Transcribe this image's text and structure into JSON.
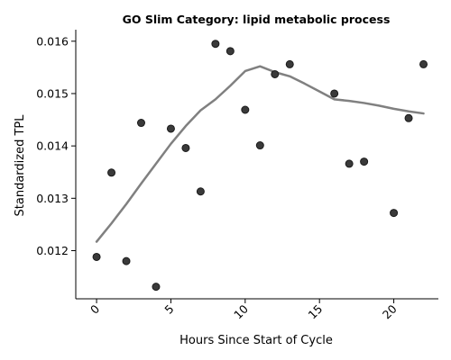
{
  "chart_data": {
    "type": "scatter",
    "title": "GO Slim Category: lipid metabolic process",
    "xlabel": "Hours Since Start of Cycle",
    "ylabel": "Standardized TPL",
    "xlim": [
      -1.4,
      23.0
    ],
    "ylim": [
      0.01108,
      0.01622
    ],
    "xticks": [
      0,
      5,
      10,
      15,
      20
    ],
    "xtick_labels": [
      "0",
      "5",
      "10",
      "15",
      "20"
    ],
    "yticks": [
      0.012,
      0.013,
      0.014,
      0.015,
      0.016
    ],
    "ytick_labels": [
      "0.012",
      "0.013",
      "0.014",
      "0.015",
      "0.016"
    ],
    "grid": false,
    "series": [
      {
        "kind": "scatter",
        "color": "#3a3a3a",
        "points": [
          {
            "x": 0,
            "y": 0.01188
          },
          {
            "x": 1,
            "y": 0.01349
          },
          {
            "x": 2,
            "y": 0.0118
          },
          {
            "x": 3,
            "y": 0.01444
          },
          {
            "x": 4,
            "y": 0.01131
          },
          {
            "x": 5,
            "y": 0.01433
          },
          {
            "x": 6,
            "y": 0.01396
          },
          {
            "x": 7,
            "y": 0.01313
          },
          {
            "x": 8,
            "y": 0.01595
          },
          {
            "x": 9,
            "y": 0.01581
          },
          {
            "x": 10,
            "y": 0.01469
          },
          {
            "x": 11,
            "y": 0.01401
          },
          {
            "x": 12,
            "y": 0.01537
          },
          {
            "x": 13,
            "y": 0.01556
          },
          {
            "x": 16,
            "y": 0.015
          },
          {
            "x": 17,
            "y": 0.01366
          },
          {
            "x": 18,
            "y": 0.0137
          },
          {
            "x": 20,
            "y": 0.01272
          },
          {
            "x": 21,
            "y": 0.01453
          },
          {
            "x": 22,
            "y": 0.01556
          }
        ]
      },
      {
        "kind": "line",
        "color": "#808080",
        "points": [
          {
            "x": 0,
            "y": 0.01217
          },
          {
            "x": 1,
            "y": 0.01252
          },
          {
            "x": 2,
            "y": 0.01289
          },
          {
            "x": 3,
            "y": 0.01328
          },
          {
            "x": 4,
            "y": 0.01366
          },
          {
            "x": 5,
            "y": 0.01404
          },
          {
            "x": 6,
            "y": 0.01438
          },
          {
            "x": 7,
            "y": 0.01468
          },
          {
            "x": 8,
            "y": 0.01489
          },
          {
            "x": 9,
            "y": 0.01515
          },
          {
            "x": 10,
            "y": 0.01543
          },
          {
            "x": 11,
            "y": 0.01552
          },
          {
            "x": 12,
            "y": 0.01541
          },
          {
            "x": 13,
            "y": 0.01533
          },
          {
            "x": 14,
            "y": 0.01519
          },
          {
            "x": 15,
            "y": 0.01504
          },
          {
            "x": 16,
            "y": 0.01489
          },
          {
            "x": 17,
            "y": 0.01486
          },
          {
            "x": 18,
            "y": 0.01482
          },
          {
            "x": 19,
            "y": 0.01477
          },
          {
            "x": 20,
            "y": 0.01471
          },
          {
            "x": 21,
            "y": 0.01466
          },
          {
            "x": 22,
            "y": 0.01462
          }
        ]
      }
    ]
  }
}
